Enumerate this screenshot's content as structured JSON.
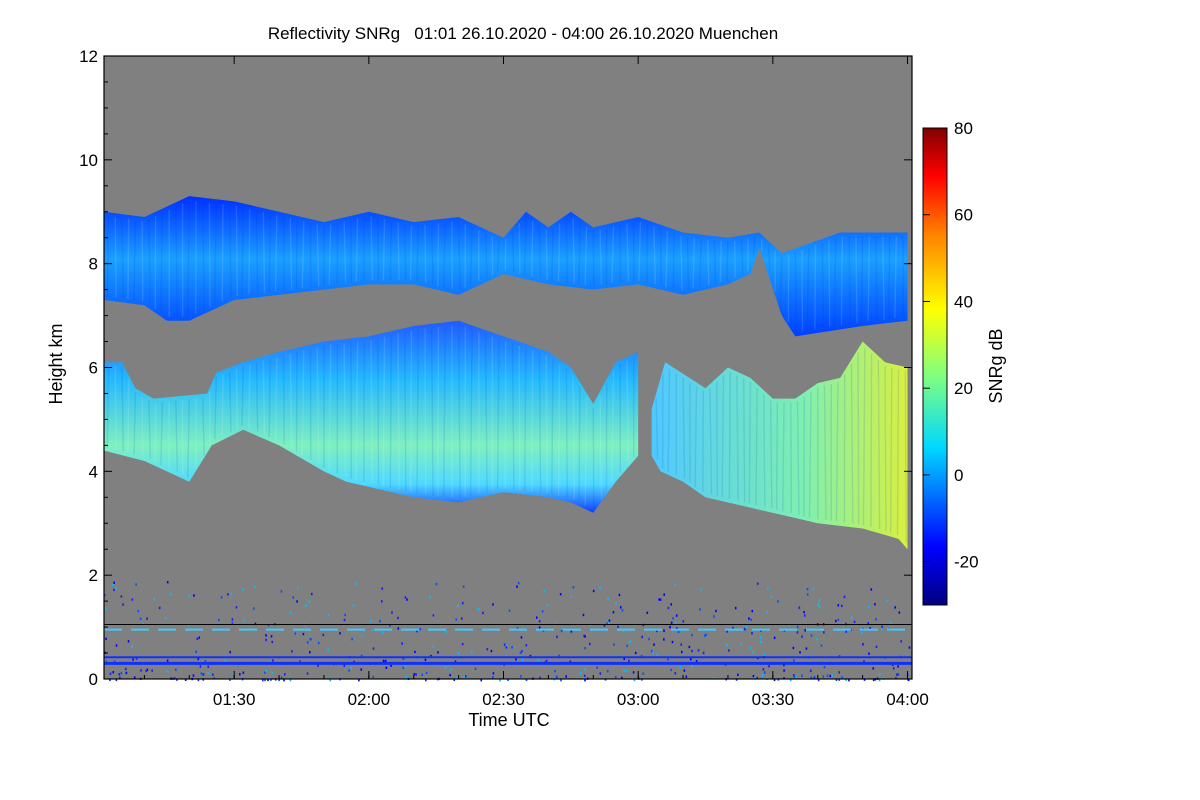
{
  "chart_data": {
    "type": "heatmap",
    "title": "Reflectivity SNRg   01:01 26.10.2020 - 04:00 26.10.2020 Muenchen",
    "xlabel": "Time UTC",
    "ylabel": "Height km",
    "x_range_minutes": [
      61,
      241
    ],
    "x_ticks": [
      {
        "label": "01:30",
        "minutes": 90
      },
      {
        "label": "02:00",
        "minutes": 120
      },
      {
        "label": "02:30",
        "minutes": 150
      },
      {
        "label": "03:00",
        "minutes": 180
      },
      {
        "label": "03:30",
        "minutes": 210
      },
      {
        "label": "04:00",
        "minutes": 240
      }
    ],
    "ylim": [
      0,
      12
    ],
    "y_ticks": [
      0,
      2,
      4,
      6,
      8,
      10,
      12
    ],
    "colorbar": {
      "label": "SNRg dB",
      "range": [
        -30,
        80
      ],
      "ticks": [
        -20,
        0,
        20,
        40,
        60,
        80
      ]
    },
    "colors": {
      "background": "#808080",
      "axis": "#000000"
    },
    "reference_line_km": 1.05,
    "layers": [
      {
        "name": "upper cloud layer",
        "snr_dB": 0,
        "top_km": [
          [
            61,
            9.0
          ],
          [
            70,
            8.9
          ],
          [
            80,
            9.3
          ],
          [
            90,
            9.2
          ],
          [
            100,
            9.0
          ],
          [
            110,
            8.8
          ],
          [
            120,
            9.0
          ],
          [
            130,
            8.8
          ],
          [
            140,
            8.9
          ],
          [
            150,
            8.5
          ],
          [
            155,
            9.0
          ],
          [
            160,
            8.7
          ],
          [
            165,
            9.0
          ],
          [
            170,
            8.7
          ],
          [
            180,
            8.9
          ],
          [
            190,
            8.6
          ],
          [
            200,
            8.5
          ],
          [
            207,
            8.6
          ],
          [
            212,
            8.2
          ],
          [
            225,
            8.6
          ],
          [
            240,
            8.6
          ]
        ],
        "bottom_km": [
          [
            61,
            7.3
          ],
          [
            70,
            7.2
          ],
          [
            75,
            6.9
          ],
          [
            80,
            6.9
          ],
          [
            90,
            7.3
          ],
          [
            100,
            7.4
          ],
          [
            110,
            7.5
          ],
          [
            120,
            7.6
          ],
          [
            130,
            7.6
          ],
          [
            140,
            7.4
          ],
          [
            150,
            7.8
          ],
          [
            160,
            7.6
          ],
          [
            170,
            7.5
          ],
          [
            180,
            7.6
          ],
          [
            190,
            7.4
          ],
          [
            200,
            7.6
          ],
          [
            205,
            7.8
          ],
          [
            207,
            8.3
          ],
          [
            212,
            7.0
          ],
          [
            215,
            6.6
          ],
          [
            230,
            6.8
          ],
          [
            240,
            6.9
          ]
        ]
      },
      {
        "name": "mid cloud layer A",
        "snr_dB": 12,
        "top_km": [
          [
            61,
            6.1
          ],
          [
            65,
            6.1
          ],
          [
            68,
            5.6
          ],
          [
            72,
            5.4
          ],
          [
            84,
            5.5
          ],
          [
            86,
            5.9
          ],
          [
            92,
            6.1
          ],
          [
            100,
            6.3
          ],
          [
            110,
            6.5
          ],
          [
            120,
            6.6
          ],
          [
            130,
            6.8
          ],
          [
            140,
            6.9
          ],
          [
            150,
            6.6
          ],
          [
            160,
            6.3
          ],
          [
            165,
            6.0
          ],
          [
            170,
            5.3
          ],
          [
            175,
            6.1
          ],
          [
            180,
            6.3
          ]
        ],
        "bottom_km": [
          [
            61,
            4.4
          ],
          [
            70,
            4.2
          ],
          [
            80,
            3.8
          ],
          [
            85,
            4.5
          ],
          [
            92,
            4.8
          ],
          [
            100,
            4.5
          ],
          [
            110,
            4.0
          ],
          [
            115,
            3.8
          ],
          [
            120,
            3.7
          ],
          [
            130,
            3.5
          ],
          [
            140,
            3.4
          ],
          [
            150,
            3.6
          ],
          [
            160,
            3.5
          ],
          [
            165,
            3.4
          ],
          [
            170,
            3.2
          ],
          [
            175,
            3.8
          ],
          [
            180,
            4.3
          ]
        ]
      },
      {
        "name": "mid cloud layer B",
        "snr_dB": 22,
        "top_km": [
          [
            183,
            5.2
          ],
          [
            186,
            6.1
          ],
          [
            195,
            5.6
          ],
          [
            200,
            6.0
          ],
          [
            205,
            5.8
          ],
          [
            210,
            5.4
          ],
          [
            215,
            5.4
          ],
          [
            220,
            5.7
          ],
          [
            225,
            5.8
          ],
          [
            230,
            6.5
          ],
          [
            235,
            6.1
          ],
          [
            240,
            6.0
          ]
        ],
        "bottom_km": [
          [
            183,
            4.3
          ],
          [
            185,
            4.0
          ],
          [
            190,
            3.8
          ],
          [
            195,
            3.5
          ],
          [
            200,
            3.4
          ],
          [
            205,
            3.3
          ],
          [
            210,
            3.2
          ],
          [
            215,
            3.1
          ],
          [
            220,
            3.0
          ],
          [
            230,
            2.9
          ],
          [
            238,
            2.7
          ],
          [
            240,
            2.5
          ]
        ]
      }
    ],
    "noise_band_km": [
      0.0,
      1.9
    ],
    "noise_lines_km": [
      0.3,
      0.42,
      0.95
    ]
  }
}
